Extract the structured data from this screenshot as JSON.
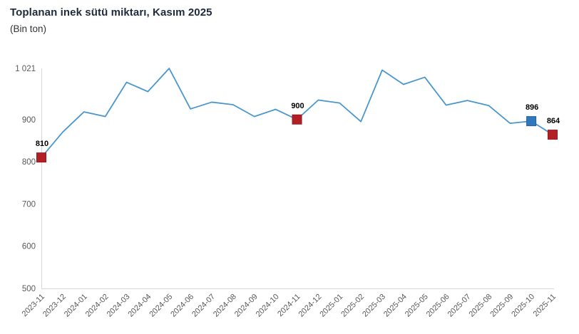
{
  "header": {
    "title": "Toplanan inek sütü miktarı, Kasım 2025",
    "subtitle": "(Bin ton)"
  },
  "chart_data": {
    "type": "line",
    "title": "Toplanan inek sütü miktarı, Kasım 2025",
    "subtitle": "(Bin ton)",
    "xlabel": "",
    "ylabel": "",
    "ylim": [
      500,
      1021
    ],
    "grid": false,
    "legend": "none",
    "categories": [
      "2023-11",
      "2023-12",
      "2024-01",
      "2024-02",
      "2024-03",
      "2024-04",
      "2024-05",
      "2024-06",
      "2024-07",
      "2024-08",
      "2024-09",
      "2024-10",
      "2024-11",
      "2024-12",
      "2025-01",
      "2025-02",
      "2025-03",
      "2025-04",
      "2025-05",
      "2025-06",
      "2025-07",
      "2025-08",
      "2025-09",
      "2025-10",
      "2025-11"
    ],
    "values": [
      810,
      870,
      918,
      907,
      988,
      966,
      1021,
      925,
      941,
      935,
      907,
      924,
      900,
      946,
      939,
      895,
      1017,
      983,
      1000,
      934,
      945,
      933,
      891,
      896,
      864
    ],
    "yticks": [
      {
        "value": 1021,
        "label": "1 021"
      },
      {
        "value": 900,
        "label": "900"
      },
      {
        "value": 800,
        "label": "800"
      },
      {
        "value": 700,
        "label": "700"
      },
      {
        "value": 600,
        "label": "600"
      },
      {
        "value": 500,
        "label": "500"
      }
    ],
    "marked_points": [
      {
        "category": "2023-11",
        "value": 810,
        "label": "810",
        "fill": "#b22025",
        "stroke": "#96191d"
      },
      {
        "category": "2024-11",
        "value": 900,
        "label": "900",
        "fill": "#b22025",
        "stroke": "#96191d"
      },
      {
        "category": "2025-10",
        "value": 896,
        "label": "896",
        "fill": "#2e79bc",
        "stroke": "#205f9c"
      },
      {
        "category": "2025-11",
        "value": 864,
        "label": "864",
        "fill": "#b22025",
        "stroke": "#96191d"
      }
    ],
    "colors": {
      "line": "#4a97ce",
      "axis_line": "#d6d6d6",
      "tick_text": "#595959",
      "point_label": "#000000",
      "background": "#ffffff"
    }
  }
}
